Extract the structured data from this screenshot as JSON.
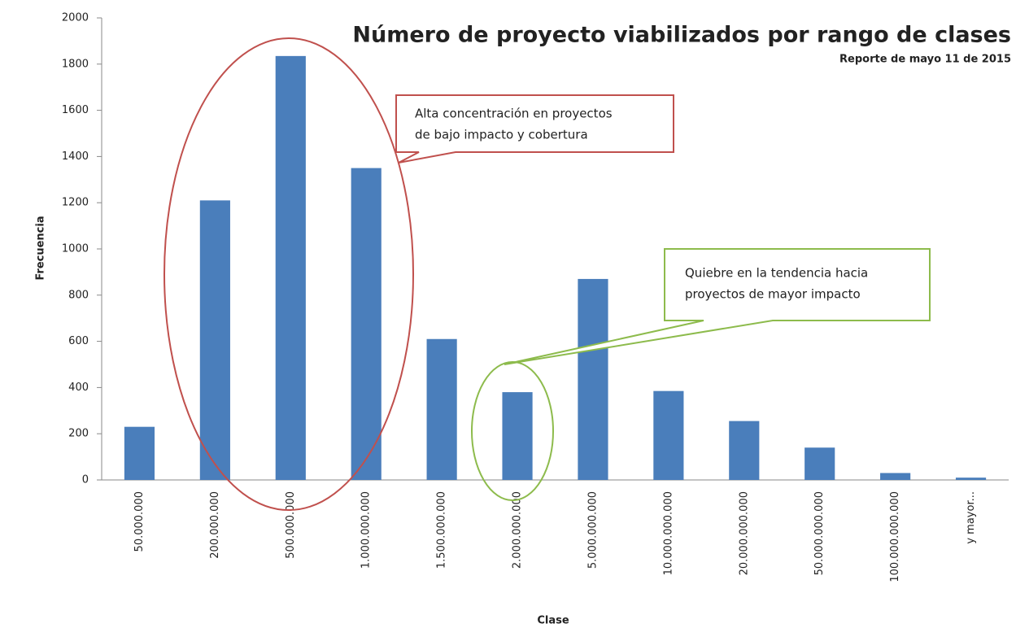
{
  "chart_data": {
    "type": "bar",
    "title": "Número de proyecto viabilizados por rango de clases",
    "subtitle": "Reporte de mayo 11 de 2015",
    "x_label": "Clase",
    "y_label": "Frecuencia",
    "categories": [
      "50.000.000",
      "200.000.000",
      "500.000.000",
      "1.000.000.000",
      "1.500.000.000",
      "2.000.000.000",
      "5.000.000.000",
      "10.000.000.000",
      "20.000.000.000",
      "50.000.000.000",
      "100.000.000.000",
      "y mayor..."
    ],
    "values": [
      230,
      1210,
      1835,
      1350,
      610,
      380,
      870,
      385,
      255,
      140,
      30,
      10
    ],
    "color": "#4a7ebb",
    "ylim": [
      0,
      2000
    ],
    "yticks": [
      0,
      200,
      400,
      600,
      800,
      1000,
      1200,
      1400,
      1600,
      1800,
      2000
    ],
    "grid": false,
    "annotations": [
      {
        "lines": [
          "Alta concentración en proyectos",
          "de bajo impacto y cobertura"
        ],
        "color": "#c0504d"
      },
      {
        "lines": [
          "Quiebre en la tendencia hacia",
          "proyectos de mayor impacto"
        ],
        "color": "#8dbb4c"
      }
    ]
  }
}
